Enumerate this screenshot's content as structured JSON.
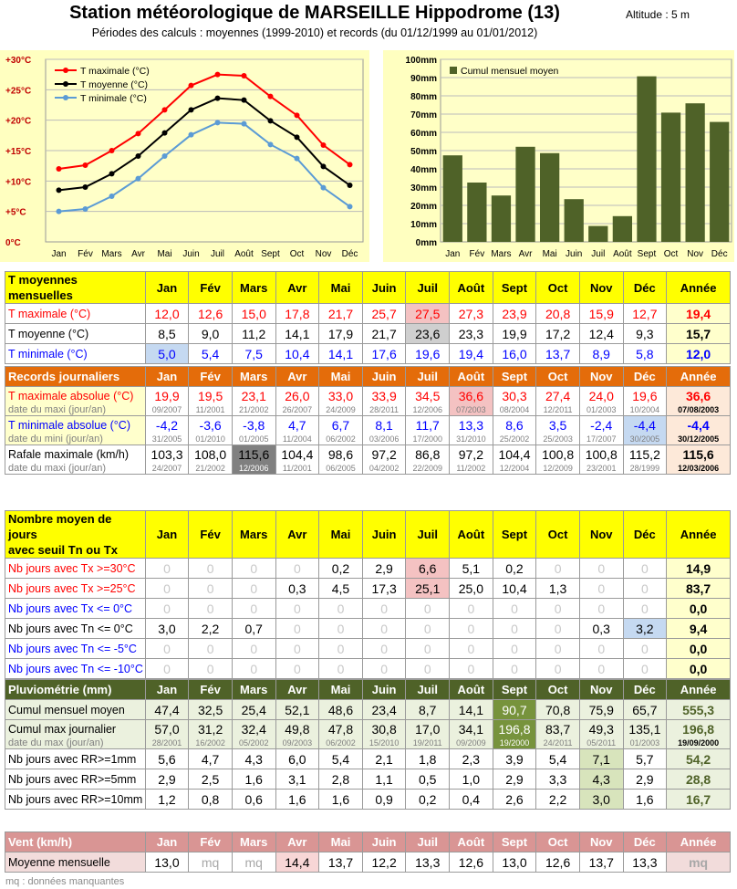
{
  "header": {
    "title": "Station météorologique de MARSEILLE Hippodrome (13)",
    "altitude": "Altitude : 5 m",
    "subtitle": "Périodes des calculs : moyennes (1999-2010) et records (du 01/12/1999 au 01/01/2012)"
  },
  "months": [
    "Jan",
    "Fév",
    "Mars",
    "Avr",
    "Mai",
    "Juin",
    "Juil",
    "Août",
    "Sept",
    "Oct",
    "Nov",
    "Déc"
  ],
  "year_label": "Année",
  "chart_data": [
    {
      "type": "line",
      "categories": [
        "Jan",
        "Fév",
        "Mars",
        "Avr",
        "Mai",
        "Juin",
        "Juil",
        "Août",
        "Sept",
        "Oct",
        "Nov",
        "Déc"
      ],
      "yticks": [
        "0°C",
        "+5°C",
        "+10°C",
        "+15°C",
        "+20°C",
        "+25°C",
        "+30°C"
      ],
      "ylim": [
        0,
        30
      ],
      "legend_position": "top-left",
      "series": [
        {
          "name": "T maximale (°C)",
          "color": "#ff0000",
          "values": [
            12.0,
            12.6,
            15.0,
            17.8,
            21.7,
            25.7,
            27.5,
            27.3,
            23.9,
            20.8,
            15.9,
            12.7
          ]
        },
        {
          "name": "T moyenne (°C)",
          "color": "#000000",
          "values": [
            8.5,
            9.0,
            11.2,
            14.1,
            17.9,
            21.7,
            23.6,
            23.3,
            19.9,
            17.2,
            12.4,
            9.3
          ]
        },
        {
          "name": "T minimale (°C)",
          "color": "#5b9bd5",
          "values": [
            5.0,
            5.4,
            7.5,
            10.4,
            14.1,
            17.6,
            19.6,
            19.4,
            16.0,
            13.7,
            8.9,
            5.8
          ]
        }
      ]
    },
    {
      "type": "bar",
      "categories": [
        "Jan",
        "Fév",
        "Mars",
        "Avr",
        "Mai",
        "Juin",
        "Juil",
        "Août",
        "Sept",
        "Oct",
        "Nov",
        "Déc"
      ],
      "yticks": [
        "0mm",
        "10mm",
        "20mm",
        "30mm",
        "40mm",
        "50mm",
        "60mm",
        "70mm",
        "80mm",
        "90mm",
        "100mm"
      ],
      "ylim": [
        0,
        100
      ],
      "legend_position": "top-left",
      "series": [
        {
          "name": "Cumul mensuel moyen",
          "color": "#4f6228",
          "values": [
            47.4,
            32.5,
            25.4,
            52.1,
            48.6,
            23.4,
            8.7,
            14.1,
            90.7,
            70.8,
            75.9,
            65.7
          ]
        }
      ]
    }
  ],
  "colors": {
    "panel_bg": "#ffffc0",
    "plot_bg": "#ffffc8",
    "yellow_header": "#ffff00",
    "orange_header": "#e46c0a",
    "green_header": "#4f6228",
    "pink_header": "#d99594",
    "red": "#ff0000",
    "blue": "#0000ff",
    "annee_yellow": "#ffffcc",
    "annee_orange": "#fde9d9",
    "annee_green": "#ebf1de",
    "annee_pink": "#f2dcdb"
  },
  "tables": {
    "t_moy": {
      "title": "T moyennes mensuelles",
      "rows": [
        {
          "label": "T maximale (°C)",
          "values": [
            "12,0",
            "12,6",
            "15,0",
            "17,8",
            "21,7",
            "25,7",
            "27,5",
            "27,3",
            "23,9",
            "20,8",
            "15,9",
            "12,7"
          ],
          "year": "19,4"
        },
        {
          "label": "T moyenne (°C)",
          "values": [
            "8,5",
            "9,0",
            "11,2",
            "14,1",
            "17,9",
            "21,7",
            "23,6",
            "23,3",
            "19,9",
            "17,2",
            "12,4",
            "9,3"
          ],
          "year": "15,7"
        },
        {
          "label": "T minimale (°C)",
          "values": [
            "5,0",
            "5,4",
            "7,5",
            "10,4",
            "14,1",
            "17,6",
            "19,6",
            "19,4",
            "16,0",
            "13,7",
            "8,9",
            "5,8"
          ],
          "year": "12,0"
        }
      ]
    },
    "records": {
      "title": "Records journaliers",
      "rows": [
        {
          "label": "T maximale absolue (°C)",
          "sublabel": "date du maxi (jour/an)",
          "values": [
            "19,9",
            "19,5",
            "23,1",
            "26,0",
            "33,0",
            "33,9",
            "34,5",
            "36,6",
            "30,3",
            "27,4",
            "24,0",
            "19,6"
          ],
          "dates": [
            "09/2007",
            "11/2001",
            "21/2002",
            "26/2007",
            "24/2009",
            "28/2011",
            "12/2006",
            "07/2003",
            "08/2004",
            "12/2011",
            "01/2003",
            "10/2004"
          ],
          "year": "36,6",
          "year_date": "07/08/2003"
        },
        {
          "label": "T minimale absolue (°C)",
          "sublabel": "date du mini (jour/an)",
          "values": [
            "-4,2",
            "-3,6",
            "-3,8",
            "4,7",
            "6,7",
            "8,1",
            "11,7",
            "13,3",
            "8,6",
            "3,5",
            "-2,4",
            "-4,4"
          ],
          "dates": [
            "31/2005",
            "01/2010",
            "01/2005",
            "11/2004",
            "06/2002",
            "03/2006",
            "17/2000",
            "31/2010",
            "25/2002",
            "25/2003",
            "17/2007",
            "30/2005"
          ],
          "year": "-4,4",
          "year_date": "30/12/2005"
        },
        {
          "label": "Rafale maximale (km/h)",
          "sublabel": "date du maxi (jour/an)",
          "values": [
            "103,3",
            "108,0",
            "115,6",
            "104,4",
            "98,6",
            "97,2",
            "86,8",
            "97,2",
            "104,4",
            "100,8",
            "100,8",
            "115,2"
          ],
          "dates": [
            "24/2007",
            "21/2002",
            "12/2006",
            "11/2001",
            "06/2005",
            "04/2002",
            "22/2009",
            "11/2002",
            "12/2004",
            "12/2009",
            "23/2001",
            "28/1999"
          ],
          "year": "115,6",
          "year_date": "12/03/2006"
        }
      ]
    },
    "jours": {
      "title_line1": "Nombre moyen de jours",
      "title_line2": "avec seuil Tn ou Tx",
      "rows": [
        {
          "label": "Nb jours avec Tx >=30°C",
          "values": [
            "0",
            "0",
            "0",
            "0",
            "0,2",
            "2,9",
            "6,6",
            "5,1",
            "0,2",
            "0",
            "0",
            "0"
          ],
          "year": "14,9"
        },
        {
          "label": "Nb jours avec Tx >=25°C",
          "values": [
            "0",
            "0",
            "0",
            "0,3",
            "4,5",
            "17,3",
            "25,1",
            "25,0",
            "10,4",
            "1,3",
            "0",
            "0"
          ],
          "year": "83,7"
        },
        {
          "label": "Nb jours avec Tx <= 0°C",
          "values": [
            "0",
            "0",
            "0",
            "0",
            "0",
            "0",
            "0",
            "0",
            "0",
            "0",
            "0",
            "0"
          ],
          "year": "0,0"
        },
        {
          "label": "Nb jours avec Tn <= 0°C",
          "values": [
            "3,0",
            "2,2",
            "0,7",
            "0",
            "0",
            "0",
            "0",
            "0",
            "0",
            "0",
            "0,3",
            "3,2"
          ],
          "year": "9,4"
        },
        {
          "label": "Nb jours avec Tn <= -5°C",
          "values": [
            "0",
            "0",
            "0",
            "0",
            "0",
            "0",
            "0",
            "0",
            "0",
            "0",
            "0",
            "0"
          ],
          "year": "0,0"
        },
        {
          "label": "Nb jours avec Tn <= -10°C",
          "values": [
            "0",
            "0",
            "0",
            "0",
            "0",
            "0",
            "0",
            "0",
            "0",
            "0",
            "0",
            "0"
          ],
          "year": "0,0"
        }
      ]
    },
    "pluvio": {
      "title": "Pluviométrie (mm)",
      "rows": [
        {
          "label": "Cumul mensuel moyen",
          "values": [
            "47,4",
            "32,5",
            "25,4",
            "52,1",
            "48,6",
            "23,4",
            "8,7",
            "14,1",
            "90,7",
            "70,8",
            "75,9",
            "65,7"
          ],
          "year": "555,3"
        },
        {
          "label": "Cumul max journalier",
          "sublabel": "date du max (jour/an)",
          "values": [
            "57,0",
            "31,2",
            "32,4",
            "49,8",
            "47,8",
            "30,8",
            "17,0",
            "34,1",
            "196,8",
            "83,7",
            "49,3",
            "135,1"
          ],
          "dates": [
            "28/2001",
            "16/2002",
            "05/2002",
            "09/2003",
            "06/2002",
            "15/2010",
            "19/2011",
            "09/2009",
            "19/2000",
            "24/2011",
            "05/2011",
            "01/2003"
          ],
          "year": "196,8",
          "year_date": "19/09/2000"
        },
        {
          "label": "Nb jours avec RR>=1mm",
          "values": [
            "5,6",
            "4,7",
            "4,3",
            "6,0",
            "5,4",
            "2,1",
            "1,8",
            "2,3",
            "3,9",
            "5,4",
            "7,1",
            "5,7"
          ],
          "year": "54,2"
        },
        {
          "label": "Nb jours avec RR>=5mm",
          "values": [
            "2,9",
            "2,5",
            "1,6",
            "3,1",
            "2,8",
            "1,1",
            "0,5",
            "1,0",
            "2,9",
            "3,3",
            "4,3",
            "2,9"
          ],
          "year": "28,8"
        },
        {
          "label": "Nb jours avec RR>=10mm",
          "values": [
            "1,2",
            "0,8",
            "0,6",
            "1,6",
            "1,6",
            "0,9",
            "0,2",
            "0,4",
            "2,6",
            "2,2",
            "3,0",
            "1,6"
          ],
          "year": "16,7"
        }
      ]
    },
    "vent": {
      "title": "Vent (km/h)",
      "rows": [
        {
          "label": "Moyenne mensuelle",
          "values": [
            "13,0",
            "mq",
            "mq",
            "14,4",
            "13,7",
            "12,2",
            "13,3",
            "12,6",
            "13,0",
            "12,6",
            "13,7",
            "13,3"
          ],
          "year": "mq"
        }
      ]
    }
  },
  "footnote": "mq : données manquantes"
}
